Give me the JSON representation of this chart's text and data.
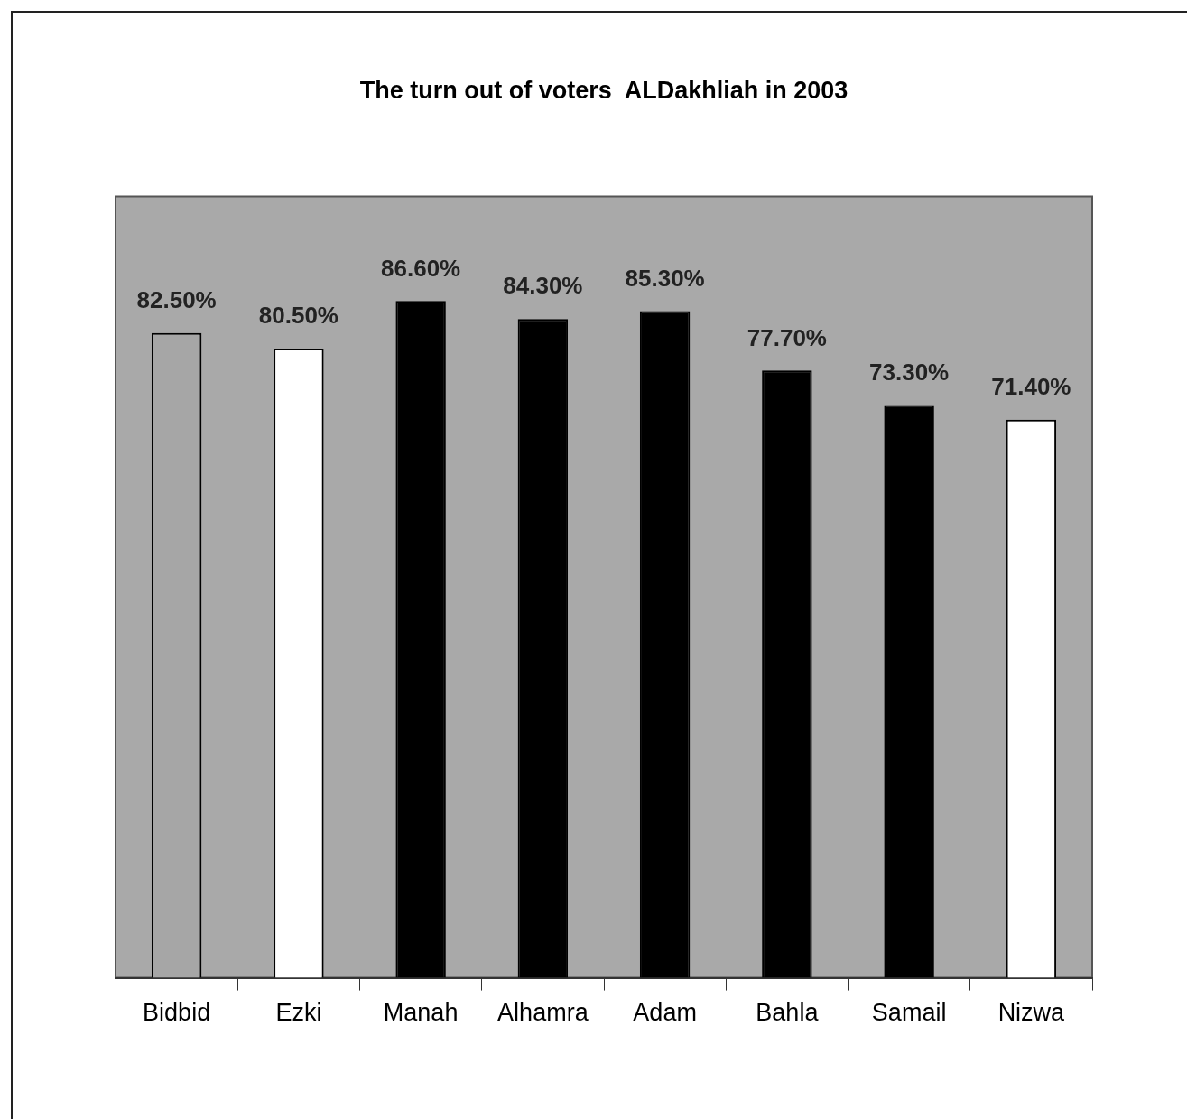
{
  "chart_data": {
    "type": "bar",
    "title": "The turn out of voters  ALDakhliah in 2003",
    "categories": [
      "Bidbid",
      "Ezki",
      "Manah",
      "Alhamra",
      "Adam",
      "Bahla",
      "Samail",
      "Nizwa"
    ],
    "values": [
      82.5,
      80.5,
      86.6,
      84.3,
      85.3,
      77.7,
      73.3,
      71.4
    ],
    "colors": [
      "#a6a6a6",
      "#ffffff",
      "#000000",
      "#000000",
      "#000000",
      "#000000",
      "#000000",
      "#ffffff"
    ],
    "value_labels": [
      "82.50%",
      "80.50%",
      "86.60%",
      "84.30%",
      "85.30%",
      "77.70%",
      "73.30%",
      "71.40%"
    ],
    "ylim": [
      0,
      100
    ],
    "tick_labels": "x",
    "grid": false,
    "legend": false
  }
}
